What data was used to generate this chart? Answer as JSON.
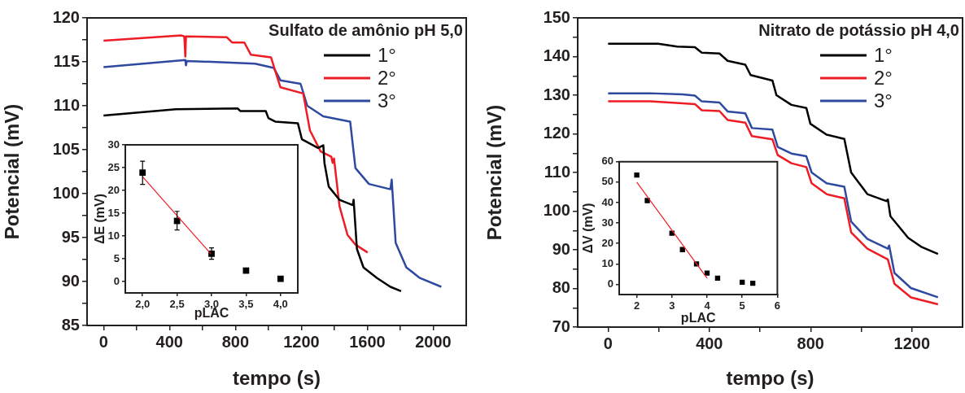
{
  "chart_data": [
    {
      "type": "line",
      "title": "Sulfato de amônio pH 5,0",
      "xlabel": "tempo (s)",
      "ylabel": "Potencial (mV)",
      "xlim": [
        -100,
        2200
      ],
      "ylim": [
        85,
        120
      ],
      "xticks": [
        0,
        {
          "value": 200,
          "label": null
        },
        400,
        {
          "value": 600,
          "label": null
        },
        800,
        {
          "value": 1000,
          "label": null
        },
        1200,
        {
          "value": 1400,
          "label": null
        },
        1600,
        {
          "value": 1800,
          "label": null
        },
        2000
      ],
      "yticks": [
        85,
        {
          "value": 87.5,
          "label": null
        },
        90,
        {
          "value": 92.5,
          "label": null
        },
        95,
        {
          "value": 97.5,
          "label": null
        },
        100,
        {
          "value": 102.5,
          "label": null
        },
        105,
        {
          "value": 107.5,
          "label": null
        },
        110,
        {
          "value": 112.5,
          "label": null
        },
        115,
        {
          "value": 117.5,
          "label": null
        },
        120
      ],
      "legend": "top right",
      "series": [
        {
          "name": "1°",
          "color": "#000000",
          "x": [
            0,
            439,
            813,
            829,
            984,
            1000,
            1041,
            1179,
            1203,
            1301,
            1333,
            1340,
            1366,
            1431,
            1512,
            1517,
            1537,
            1577,
            1659,
            1740,
            1805
          ],
          "values": [
            108.9,
            109.6,
            109.7,
            109.4,
            109.4,
            108.6,
            108.2,
            108.0,
            106.2,
            105.2,
            105.5,
            103.5,
            100.8,
            99.3,
            98.7,
            99.3,
            93.7,
            91.6,
            90.4,
            89.4,
            88.9
          ]
        },
        {
          "name": "2°",
          "color": "#ee1c25",
          "x": [
            0,
            472,
            490,
            496,
            500,
            748,
            780,
            854,
            894,
            1016,
            1073,
            1211,
            1252,
            1317,
            1382,
            1390,
            1398,
            1431,
            1480,
            1528,
            1602
          ],
          "values": [
            117.4,
            118.0,
            117.9,
            115.6,
            117.9,
            117.8,
            117.2,
            117.2,
            115.8,
            115.5,
            112.1,
            111.4,
            107.2,
            104.8,
            104.2,
            103.5,
            104.0,
            98.6,
            95.3,
            94.2,
            93.3
          ]
        },
        {
          "name": "3°",
          "color": "#2e49a0",
          "x": [
            0,
            496,
            500,
            505,
            919,
            1033,
            1073,
            1195,
            1236,
            1333,
            1496,
            1528,
            1610,
            1740,
            1748,
            1772,
            1837,
            1919,
            2049
          ],
          "values": [
            114.4,
            115.2,
            114.6,
            115.1,
            114.8,
            114.3,
            112.9,
            112.5,
            110.0,
            108.8,
            108.2,
            102.9,
            101.1,
            100.5,
            101.6,
            94.4,
            91.6,
            90.4,
            89.4
          ]
        }
      ]
    },
    {
      "type": "scatter",
      "xlabel": "pLAC",
      "ylabel": "ΔE (mV)",
      "xlim": [
        1.75,
        4.25
      ],
      "ylim": [
        -2.5,
        30
      ],
      "xticks": [
        {
          "value": 2,
          "label": "2,0"
        },
        {
          "value": 2.5,
          "label": "2,5"
        },
        {
          "value": 3,
          "label": "3,0"
        },
        {
          "value": 3.5,
          "label": "3,5"
        },
        {
          "value": 4,
          "label": "4,0"
        }
      ],
      "yticks": [
        0,
        5,
        10,
        15,
        20,
        25,
        30
      ],
      "series": [
        {
          "type": "scatter",
          "color": "#000000",
          "marker": "square",
          "x": [
            2,
            2.5,
            3,
            3.5,
            4
          ],
          "values": [
            23.9,
            13.3,
            6.1,
            2.4,
            0.6
          ],
          "errors": [
            [
              21.3,
              26.4
            ],
            [
              11.3,
              15.4
            ],
            [
              4.9,
              7.4
            ],
            null,
            null
          ]
        },
        {
          "type": "line",
          "color": "#ee1c25",
          "x": [
            2,
            3
          ],
          "values": [
            23,
            5.9
          ]
        }
      ]
    },
    {
      "type": "line",
      "title": "Nitrato de potássio pH 4,0",
      "xlabel": "tempo (s)",
      "ylabel": "Potencial (mV)",
      "xlim": [
        -120,
        1400
      ],
      "ylim": [
        70,
        150
      ],
      "xticks": [
        0,
        {
          "value": 200,
          "label": null
        },
        400,
        {
          "value": 600,
          "label": null
        },
        800,
        {
          "value": 1000,
          "label": null
        },
        1200
      ],
      "yticks": [
        70,
        {
          "value": 75,
          "label": null
        },
        80,
        {
          "value": 85,
          "label": null
        },
        90,
        {
          "value": 95,
          "label": null
        },
        100,
        {
          "value": 105,
          "label": null
        },
        110,
        {
          "value": 115,
          "label": null
        },
        120,
        {
          "value": 125,
          "label": null
        },
        130,
        {
          "value": 135,
          "label": null
        },
        140,
        {
          "value": 145,
          "label": null
        },
        150
      ],
      "legend": "top right",
      "series": [
        {
          "name": "1°",
          "color": "#000000",
          "x": [
            0,
            198,
            273,
            343,
            370,
            440,
            472,
            542,
            563,
            649,
            665,
            724,
            783,
            799,
            863,
            933,
            960,
            1024,
            1099,
            1105,
            1115,
            1185,
            1239,
            1303
          ],
          "values": [
            143.3,
            143.3,
            142.6,
            142.4,
            141.0,
            140.8,
            138.9,
            137.9,
            135.2,
            133.8,
            130.0,
            127.5,
            126.7,
            122.6,
            119.8,
            118.7,
            110.0,
            104.4,
            102.6,
            103.0,
            98.7,
            93.1,
            90.7,
            88.9
          ]
        },
        {
          "name": "2°",
          "color": "#ee1c25",
          "x": [
            0,
            166,
            295,
            343,
            370,
            440,
            472,
            542,
            568,
            649,
            670,
            724,
            783,
            804,
            863,
            933,
            960,
            1024,
            1105,
            1131,
            1196,
            1303
          ],
          "values": [
            128.4,
            128.4,
            127.9,
            127.7,
            126.1,
            125.9,
            123.6,
            122.9,
            119.4,
            118.6,
            114.5,
            112.4,
            111.4,
            107.2,
            104.4,
            103.3,
            94.5,
            90.3,
            87.5,
            81.2,
            77.7,
            75.9
          ]
        },
        {
          "name": "3°",
          "color": "#2e49a0",
          "x": [
            0,
            166,
            295,
            343,
            370,
            440,
            472,
            542,
            568,
            649,
            670,
            724,
            783,
            804,
            863,
            933,
            960,
            1024,
            1105,
            1110,
            1131,
            1196,
            1303
          ],
          "values": [
            130.5,
            130.5,
            130.2,
            129.9,
            128.4,
            128.1,
            125.8,
            125.3,
            121.5,
            121.1,
            116.6,
            114.9,
            114.2,
            110.0,
            107.2,
            106.3,
            97.3,
            92.8,
            90.3,
            91.1,
            84.0,
            80.1,
            77.7
          ]
        }
      ]
    },
    {
      "type": "scatter",
      "xlabel": "pLAC",
      "ylabel": "ΔV (mV)",
      "xlim": [
        1.5,
        6
      ],
      "ylim": [
        -5,
        60
      ],
      "xticks": [
        2,
        3,
        4,
        5,
        6
      ],
      "yticks": [
        0,
        10,
        20,
        30,
        40,
        50,
        60
      ],
      "series": [
        {
          "type": "scatter",
          "color": "#000000",
          "marker": "square",
          "x": [
            2,
            2.3,
            3,
            3.3,
            3.7,
            4,
            4.3,
            5,
            5.3
          ],
          "values": [
            53.5,
            41,
            25,
            17,
            10,
            5.5,
            3,
            1,
            0.5
          ]
        },
        {
          "type": "line",
          "color": "#ee1c25",
          "x": [
            2,
            4
          ],
          "values": [
            50,
            3
          ]
        }
      ]
    }
  ]
}
